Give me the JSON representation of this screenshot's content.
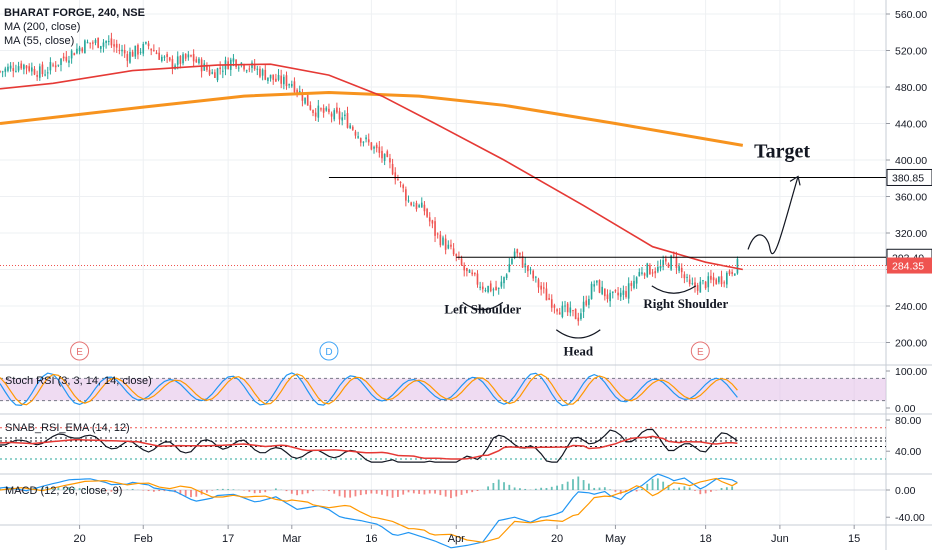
{
  "header": {
    "symbol_line": "BHARAT FORGE, 240, NSE",
    "ma200_label": "MA (200, close)",
    "ma55_label": "MA (55, close)"
  },
  "annotations": {
    "target": "Target",
    "left_shoulder": "Left Shoulder",
    "head": "Head",
    "right_shoulder": "Right Shoulder"
  },
  "price_tags": [
    {
      "value": 380.85,
      "label": "380.85",
      "kind": "line"
    },
    {
      "value": 293.4,
      "label": "293.40",
      "kind": "line"
    },
    {
      "value": 284.35,
      "label": "284.35",
      "kind": "last"
    }
  ],
  "event_markers": [
    {
      "label": "E",
      "x": "Jan 20",
      "color": "#e57373"
    },
    {
      "label": "D",
      "x": "Mar 8",
      "color": "#42a5f5"
    },
    {
      "label": "E",
      "x": "May 17",
      "color": "#e57373"
    }
  ],
  "panels": {
    "stoch": {
      "label": "Stoch RSI (3, 3, 14, 14, close)",
      "ticks": [
        "100.00",
        "0.00"
      ]
    },
    "snab": {
      "label": "SNAB_RSI_EMA (14, 12)",
      "ticks": [
        "80.00",
        "40.00"
      ]
    },
    "macd": {
      "label": "MACD (12, 26, close, 9)",
      "ticks": [
        "0.00",
        "-40.00"
      ]
    }
  },
  "colors": {
    "up": "#26a69a",
    "down": "#ef5350",
    "ma200": "#f7931e",
    "ma55": "#e53935",
    "stoch_k": "#2196f3",
    "stoch_d": "#ff9800",
    "stoch_band": "#e1bee7",
    "macd_line": "#2196f3",
    "signal_line": "#ff9800",
    "neckline": "#000000"
  },
  "chart_data": {
    "type": "candlestick",
    "title": "BHARAT FORGE, 240, NSE",
    "y_ticks": [
      "560.00",
      "520.00",
      "480.00",
      "440.00",
      "400.00",
      "360.00",
      "320.00",
      "280.00",
      "240.00",
      "200.00"
    ],
    "ylim": [
      180,
      575
    ],
    "x_ticks": [
      "20",
      "Feb",
      "17",
      "Mar",
      "16",
      "Apr",
      "20",
      "May",
      "18",
      "Jun",
      "15"
    ],
    "x_range": [
      "Jan 5",
      "Jun 21"
    ],
    "closes": [
      [
        "Jan 5",
        497
      ],
      [
        "Jan 9",
        505
      ],
      [
        "Jan 13",
        495
      ],
      [
        "Jan 17",
        512
      ],
      [
        "Jan 21",
        527
      ],
      [
        "Jan 25",
        530
      ],
      [
        "Jan 29",
        515
      ],
      [
        "Feb 2",
        525
      ],
      [
        "Feb 6",
        505
      ],
      [
        "Feb 10",
        512
      ],
      [
        "Feb 14",
        495
      ],
      [
        "Feb 18",
        510
      ],
      [
        "Feb 22",
        500
      ],
      [
        "Feb 26",
        487
      ],
      [
        "Mar 1",
        485
      ],
      [
        "Mar 5",
        455
      ],
      [
        "Mar 8",
        450
      ],
      [
        "Mar 11",
        445
      ],
      [
        "Mar 14",
        425
      ],
      [
        "Mar 17",
        410
      ],
      [
        "Mar 20",
        390
      ],
      [
        "Mar 23",
        355
      ],
      [
        "Mar 26",
        345
      ],
      [
        "Mar 28",
        320
      ],
      [
        "Mar 31",
        300
      ],
      [
        "Apr 3",
        275
      ],
      [
        "Apr 6",
        262
      ],
      [
        "Apr 9",
        257
      ],
      [
        "Apr 12",
        300
      ],
      [
        "Apr 15",
        275
      ],
      [
        "Apr 18",
        250
      ],
      [
        "Apr 21",
        235
      ],
      [
        "Apr 24",
        228
      ],
      [
        "Apr 27",
        265
      ],
      [
        "Apr 30",
        248
      ],
      [
        "May 3",
        255
      ],
      [
        "May 6",
        280
      ],
      [
        "May 9",
        280
      ],
      [
        "May 12",
        292
      ],
      [
        "May 15",
        260
      ],
      [
        "May 18",
        265
      ],
      [
        "May 21",
        270
      ],
      [
        "May 24",
        285
      ]
    ],
    "series": [
      {
        "name": "MA (200, close)",
        "points": [
          [
            "Jan 5",
            440
          ],
          [
            "Feb 1",
            458
          ],
          [
            "Feb 20",
            470
          ],
          [
            "Mar 8",
            474
          ],
          [
            "Mar 25",
            470
          ],
          [
            "Apr 10",
            460
          ],
          [
            "May 1",
            440
          ],
          [
            "May 25",
            416
          ]
        ]
      },
      {
        "name": "MA (55, close)",
        "points": [
          [
            "Jan 5",
            478
          ],
          [
            "Jan 15",
            484
          ],
          [
            "Jan 30",
            498
          ],
          [
            "Feb 15",
            504
          ],
          [
            "Feb 25",
            505
          ],
          [
            "Mar 8",
            493
          ],
          [
            "Mar 18",
            470
          ],
          [
            "Mar 28",
            440
          ],
          [
            "Apr 10",
            400
          ],
          [
            "Apr 25",
            350
          ],
          [
            "May 8",
            305
          ],
          [
            "May 18",
            288
          ],
          [
            "May 25",
            280
          ]
        ]
      }
    ],
    "horizontal_lines": [
      {
        "value": 380.85,
        "from": "Mar 8",
        "to": "Jun 21"
      },
      {
        "value": 293.4,
        "from": "Apr 1",
        "to": "Jun 21"
      }
    ]
  }
}
